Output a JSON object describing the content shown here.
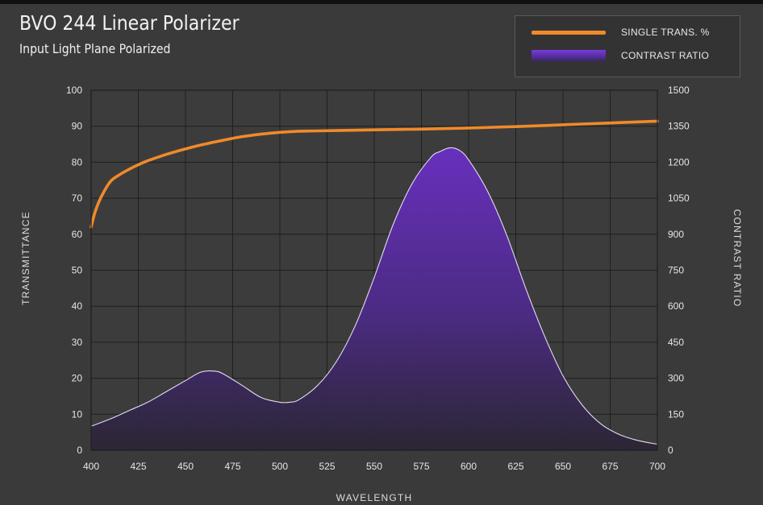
{
  "header": {
    "title": "BVO 244 Linear Polarizer",
    "subtitle": "Input Light Plane Polarized"
  },
  "legend": {
    "items": [
      {
        "label": "SINGLE TRANS. %",
        "color": "#f08a2a",
        "kind": "line"
      },
      {
        "label": "CONTRAST RATIO",
        "color": "#6a2fc4",
        "kind": "area"
      }
    ]
  },
  "chart_data": {
    "type": "line",
    "xlabel": "WAVELENGTH",
    "ylabel": "TRANSMITTANCE",
    "y2label": "CONTRAST RATIO",
    "xlim": [
      400,
      700
    ],
    "ylim": [
      0,
      100
    ],
    "y2lim": [
      0,
      1500
    ],
    "xticks": [
      400,
      425,
      450,
      475,
      500,
      525,
      550,
      575,
      600,
      625,
      650,
      675,
      700
    ],
    "yticks": [
      0,
      10,
      20,
      30,
      40,
      50,
      60,
      70,
      80,
      90,
      100
    ],
    "y2ticks": [
      0,
      150,
      300,
      450,
      600,
      750,
      900,
      1050,
      1200,
      1350,
      1500
    ],
    "grid": true,
    "legend_position": "top-right",
    "series": [
      {
        "name": "SINGLE TRANS. %",
        "axis": "left",
        "type": "line",
        "color": "#f08a2a",
        "x": [
          400,
          402,
          405,
          410,
          415,
          420,
          425,
          430,
          440,
          450,
          460,
          470,
          480,
          490,
          500,
          510,
          520,
          530,
          550,
          575,
          600,
          625,
          650,
          675,
          690,
          700
        ],
        "y": [
          62,
          66,
          70,
          74.5,
          76.5,
          78,
          79.3,
          80.4,
          82.2,
          83.7,
          85,
          86.1,
          87.1,
          87.8,
          88.3,
          88.6,
          88.7,
          88.8,
          89,
          89.2,
          89.5,
          89.9,
          90.4,
          90.9,
          91.2,
          91.4
        ]
      },
      {
        "name": "CONTRAST RATIO",
        "axis": "right",
        "type": "area",
        "color": "#6a2fc4",
        "x": [
          400,
          410,
          420,
          430,
          440,
          450,
          458,
          465,
          470,
          480,
          490,
          500,
          505,
          510,
          520,
          530,
          540,
          550,
          560,
          570,
          580,
          585,
          590,
          595,
          600,
          610,
          620,
          630,
          640,
          650,
          660,
          670,
          680,
          690,
          700
        ],
        "y": [
          100,
          130,
          165,
          200,
          245,
          290,
          325,
          330,
          318,
          270,
          220,
          200,
          200,
          210,
          270,
          370,
          520,
          720,
          940,
          1110,
          1220,
          1245,
          1260,
          1250,
          1210,
          1080,
          900,
          680,
          480,
          310,
          190,
          110,
          65,
          40,
          25
        ]
      }
    ]
  }
}
